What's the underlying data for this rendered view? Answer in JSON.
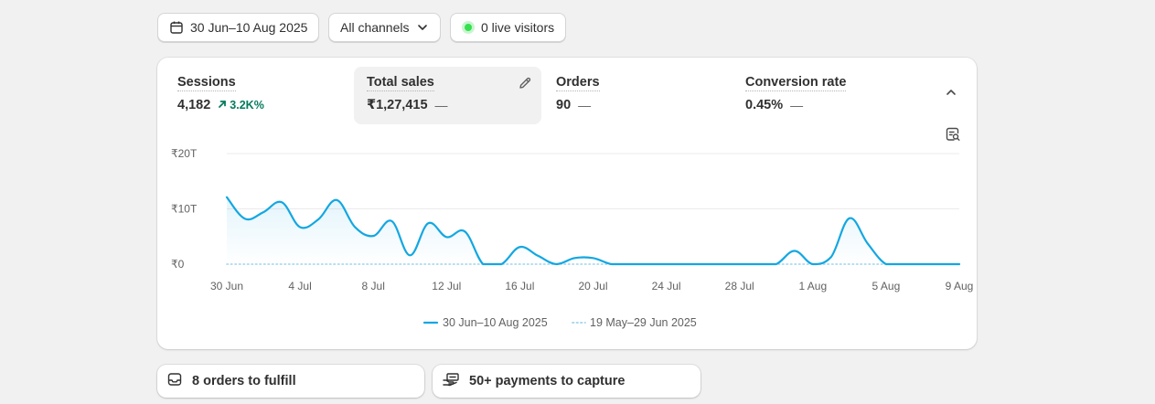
{
  "toolbar": {
    "date_range": "30 Jun–10 Aug 2025",
    "channels": "All channels",
    "live_visitors": "0 live visitors"
  },
  "metrics": [
    {
      "label": "Sessions",
      "value": "4,182",
      "change": "3.2K%",
      "change_color": "#047b5d",
      "active": false
    },
    {
      "label": "Total sales",
      "value": "₹1,27,415",
      "change": "—",
      "active": true
    },
    {
      "label": "Orders",
      "value": "90",
      "change": "—",
      "active": false
    },
    {
      "label": "Conversion rate",
      "value": "0.45%",
      "change": "—",
      "active": false
    }
  ],
  "icons": {
    "calendar": "calendar-icon",
    "chevron": "chevron-down-icon",
    "live": "live-dot-icon",
    "edit": "pencil-icon",
    "collapse": "chevron-up-icon",
    "chart_tool": "chart-search-icon",
    "inbox": "inbox-icon",
    "payment": "hand-money-icon"
  },
  "colors": {
    "series_current": "#13a7e1",
    "series_previous": "#9fd3ee",
    "positive": "#047b5d",
    "live": "#35e04e"
  },
  "chart_data": {
    "type": "line",
    "y_ticks": [
      "₹0",
      "₹10T",
      "₹20T"
    ],
    "ylim": [
      0,
      20
    ],
    "x_ticks": [
      "30 Jun",
      "4 Jul",
      "8 Jul",
      "12 Jul",
      "16 Jul",
      "20 Jul",
      "24 Jul",
      "28 Jul",
      "1 Aug",
      "5 Aug",
      "9 Aug"
    ],
    "grid": true,
    "legend_position": "bottom-center",
    "series": [
      {
        "name": "30 Jun–10 Aug 2025",
        "style": "solid",
        "values": [
          12.1,
          8.2,
          9.4,
          11.2,
          6.7,
          8.1,
          11.6,
          6.7,
          5.1,
          7.8,
          1.6,
          7.4,
          4.9,
          5.9,
          0,
          0,
          3.1,
          1.5,
          0,
          1.1,
          1.1,
          0,
          0,
          0,
          0,
          0,
          0,
          0,
          0,
          0,
          0,
          2.4,
          0,
          1.3,
          8.3,
          3.7,
          0,
          0,
          0,
          0,
          0
        ]
      },
      {
        "name": "19 May–29 Jun 2025",
        "style": "dotted",
        "values": [
          0,
          0,
          0,
          0,
          0,
          0,
          0,
          0,
          0,
          0,
          0,
          0,
          0,
          0,
          0,
          0,
          0,
          0,
          0,
          0,
          0,
          0,
          0,
          0,
          0,
          0,
          0,
          0,
          0,
          0,
          0,
          0,
          0,
          0,
          0,
          0,
          0,
          0,
          0,
          0,
          0
        ]
      }
    ]
  },
  "tasks": {
    "orders": "8 orders to fulfill",
    "payments": "50+ payments to capture"
  }
}
